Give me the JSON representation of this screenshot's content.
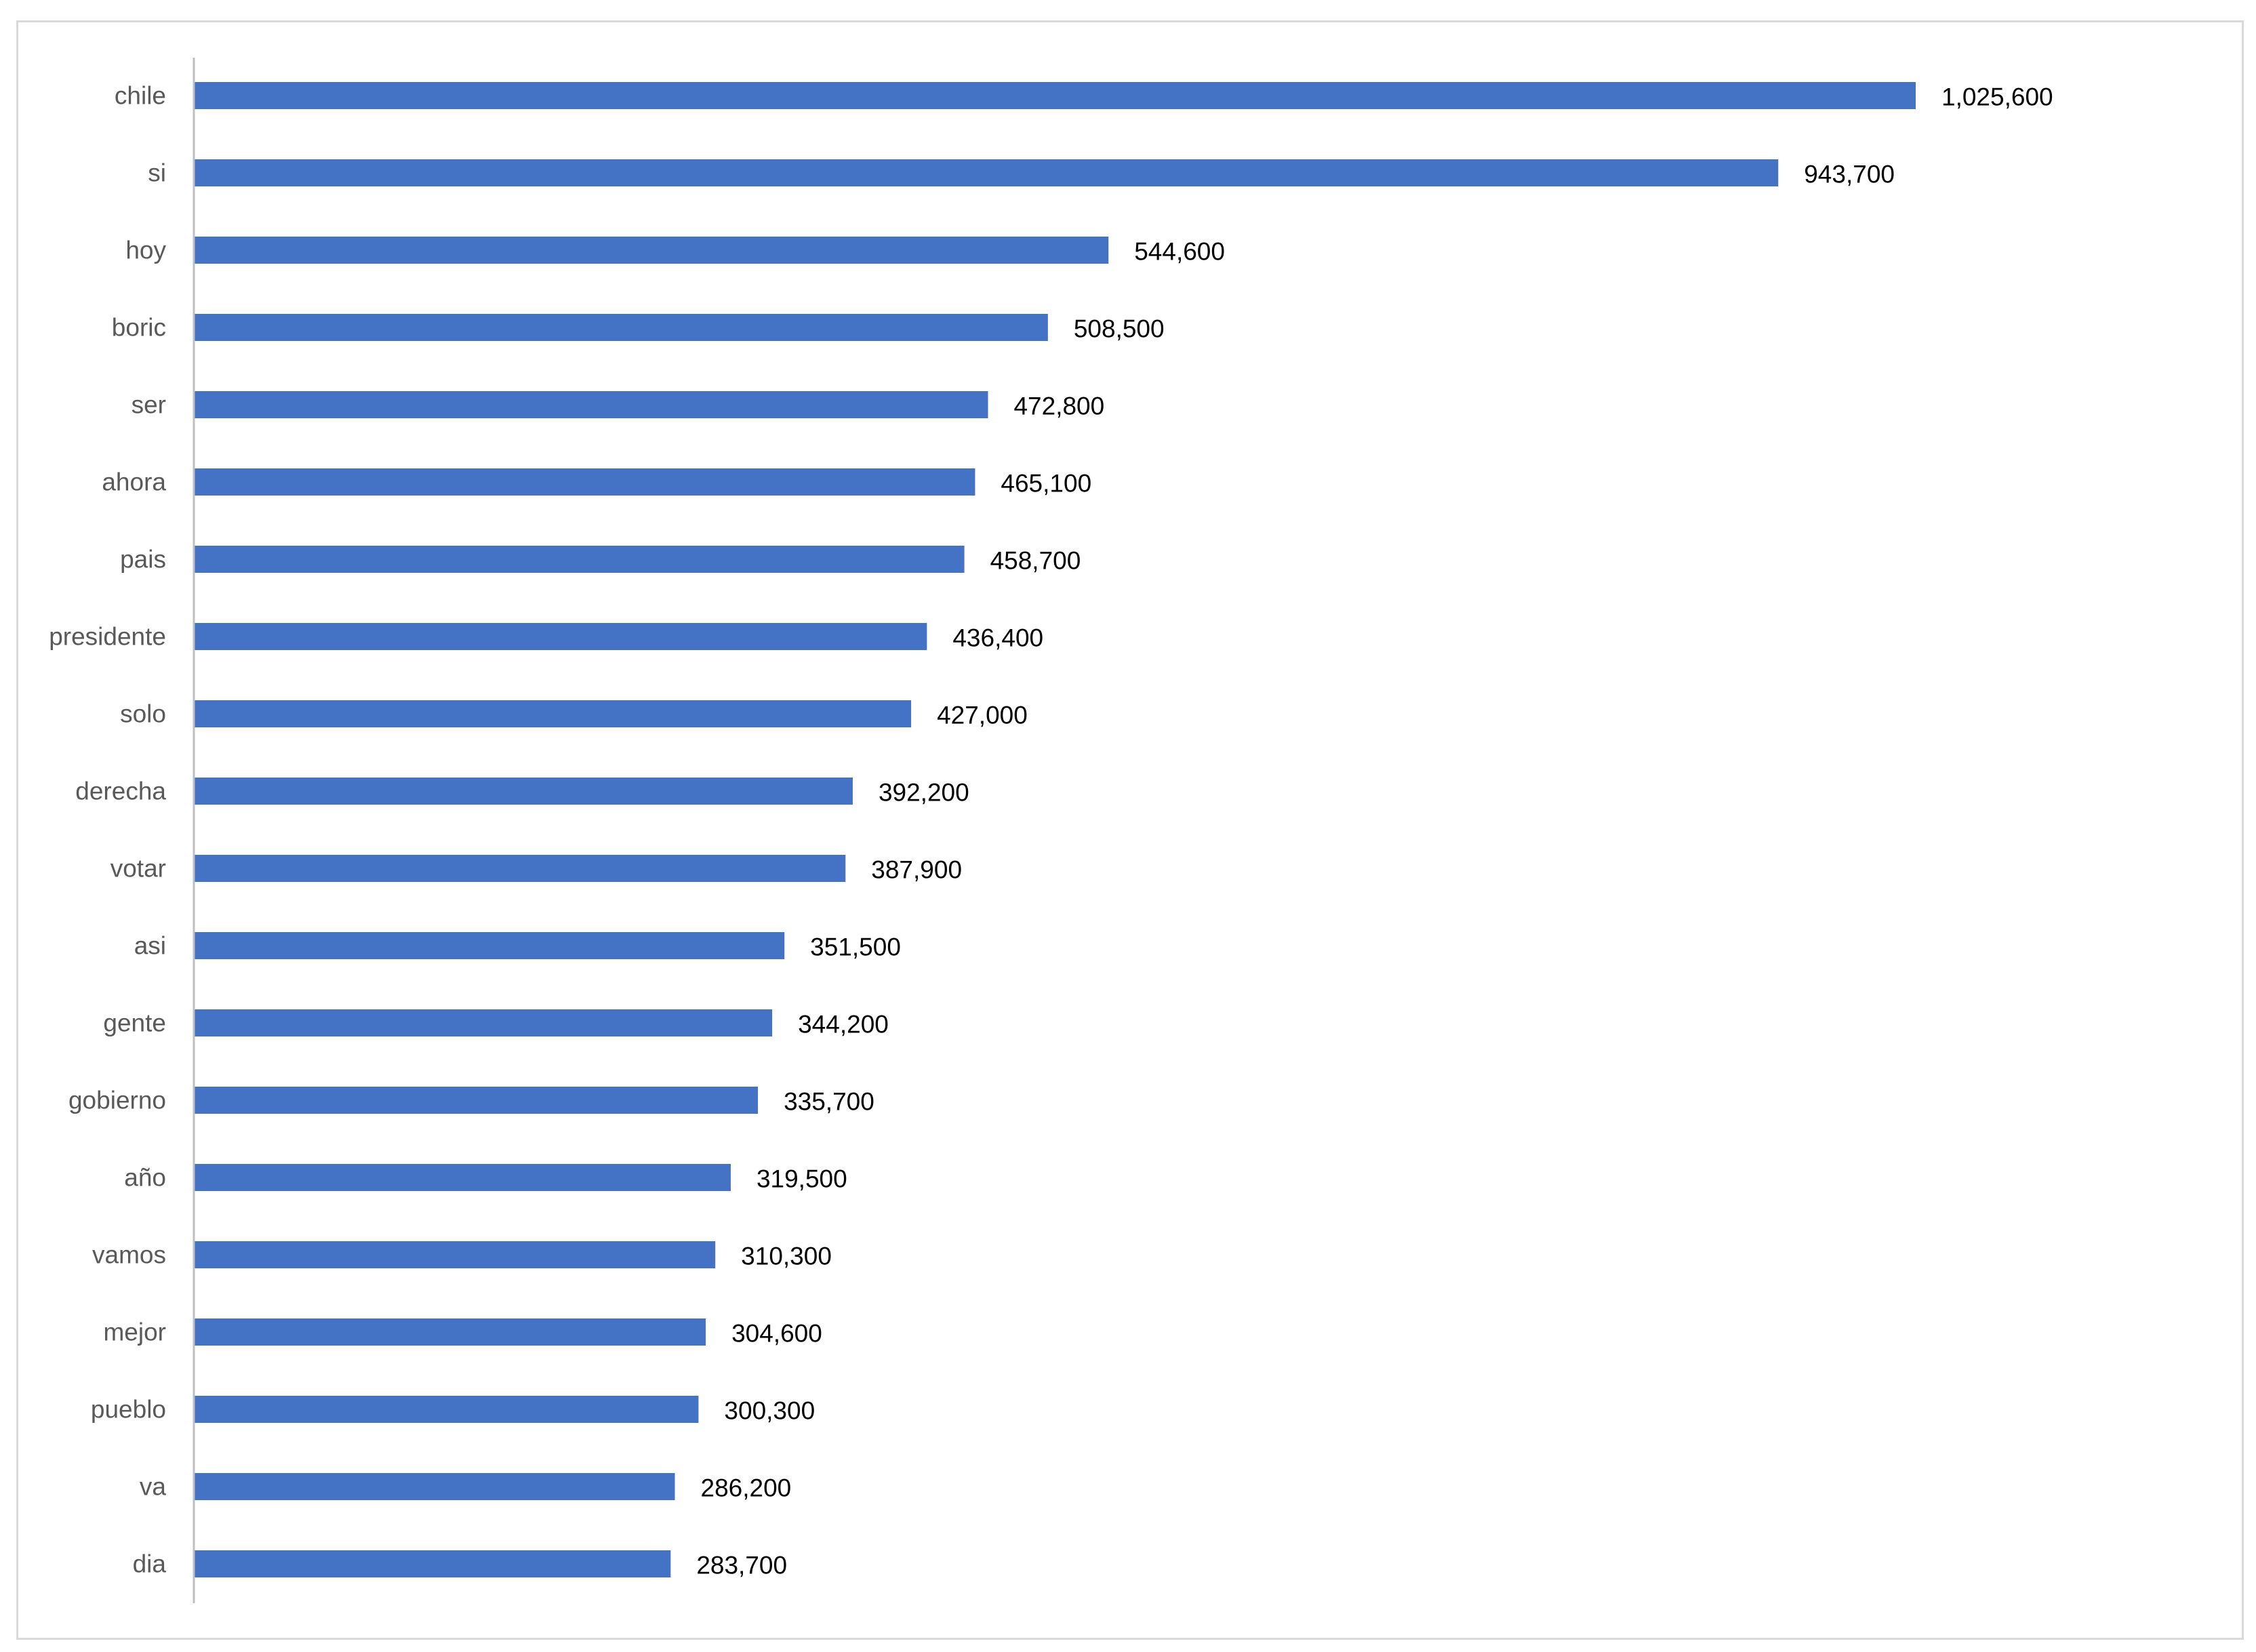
{
  "chart_data": {
    "type": "bar",
    "orientation": "horizontal",
    "title": "",
    "xlabel": "",
    "ylabel": "",
    "grid": false,
    "legend": "none",
    "bar_color": "#4472C4",
    "xlim": [
      0,
      1200000
    ],
    "categories": [
      "chile",
      "si",
      "hoy",
      "boric",
      "ser",
      "ahora",
      "pais",
      "presidente",
      "solo",
      "derecha",
      "votar",
      "asi",
      "gente",
      "gobierno",
      "año",
      "vamos",
      "mejor",
      "pueblo",
      "va",
      "dia"
    ],
    "values": [
      1025600,
      943700,
      544600,
      508500,
      472800,
      465100,
      458700,
      436400,
      427000,
      392200,
      387900,
      351500,
      344200,
      335700,
      319500,
      310300,
      304600,
      300300,
      286200,
      283700
    ],
    "value_labels": [
      "1,025,600",
      "943,700",
      "544,600",
      "508,500",
      "472,800",
      "465,100",
      "458,700",
      "436,400",
      "427,000",
      "392,200",
      "387,900",
      "351,500",
      "344,200",
      "335,700",
      "319,500",
      "310,300",
      "304,600",
      "300,300",
      "286,200",
      "283,700"
    ]
  }
}
